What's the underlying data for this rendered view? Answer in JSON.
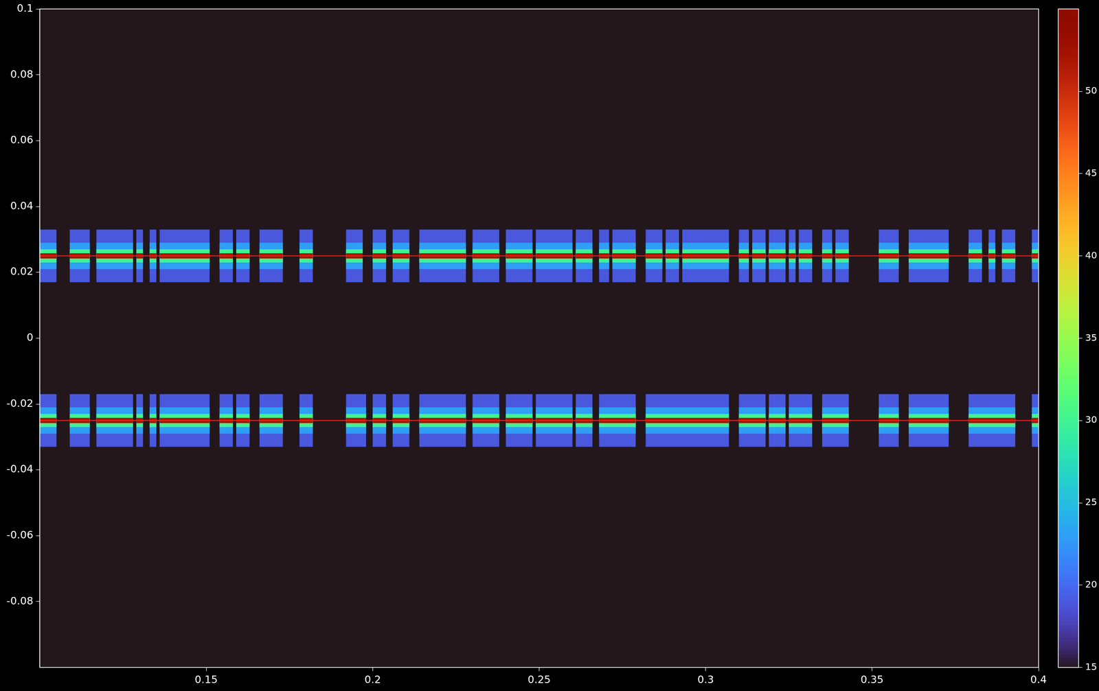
{
  "chart_data": {
    "type": "heatmap",
    "xlim": [
      0.1,
      0.4
    ],
    "xticks": [
      0.15,
      0.2,
      0.25,
      0.3,
      0.35,
      0.4
    ],
    "ylim": [
      -0.1,
      0.1
    ],
    "yticks": [
      -0.08,
      -0.06,
      -0.04,
      -0.02,
      0,
      0.02,
      0.04,
      0.06,
      0.08,
      0.1
    ],
    "grid": false,
    "background": 15,
    "colorbar": {
      "range": [
        15,
        55
      ],
      "ticks": [
        15,
        20,
        25,
        30,
        35,
        40,
        45,
        50
      ]
    },
    "profile": [
      {
        "half_width": 0.008,
        "value": 19
      },
      {
        "half_width": 0.004,
        "value": 23
      },
      {
        "half_width": 0.002,
        "value": 30
      },
      {
        "half_width": 0.0008,
        "value": 52
      }
    ],
    "bands": [
      {
        "center": 0.025,
        "bursts": [
          [
            0.1,
            0.105
          ],
          [
            0.109,
            0.115
          ],
          [
            0.117,
            0.128
          ],
          [
            0.129,
            0.131
          ],
          [
            0.133,
            0.135
          ],
          [
            0.136,
            0.149
          ],
          [
            0.149,
            0.151
          ],
          [
            0.154,
            0.158
          ],
          [
            0.159,
            0.163
          ],
          [
            0.166,
            0.173
          ],
          [
            0.178,
            0.182
          ],
          [
            0.192,
            0.197
          ],
          [
            0.2,
            0.204
          ],
          [
            0.206,
            0.211
          ],
          [
            0.214,
            0.228
          ],
          [
            0.23,
            0.238
          ],
          [
            0.24,
            0.248
          ],
          [
            0.249,
            0.26
          ],
          [
            0.261,
            0.266
          ],
          [
            0.268,
            0.271
          ],
          [
            0.272,
            0.279
          ],
          [
            0.282,
            0.287
          ],
          [
            0.288,
            0.292
          ],
          [
            0.293,
            0.307
          ],
          [
            0.31,
            0.313
          ],
          [
            0.314,
            0.318
          ],
          [
            0.319,
            0.324
          ],
          [
            0.325,
            0.327
          ],
          [
            0.328,
            0.332
          ],
          [
            0.335,
            0.338
          ],
          [
            0.339,
            0.343
          ],
          [
            0.352,
            0.358
          ],
          [
            0.361,
            0.373
          ],
          [
            0.379,
            0.383
          ],
          [
            0.385,
            0.387
          ],
          [
            0.389,
            0.393
          ],
          [
            0.398,
            0.4
          ]
        ]
      },
      {
        "center": -0.025,
        "bursts": [
          [
            0.1,
            0.105
          ],
          [
            0.109,
            0.115
          ],
          [
            0.117,
            0.128
          ],
          [
            0.129,
            0.131
          ],
          [
            0.133,
            0.135
          ],
          [
            0.136,
            0.149
          ],
          [
            0.149,
            0.151
          ],
          [
            0.154,
            0.158
          ],
          [
            0.159,
            0.163
          ],
          [
            0.166,
            0.173
          ],
          [
            0.178,
            0.182
          ],
          [
            0.192,
            0.198
          ],
          [
            0.2,
            0.204
          ],
          [
            0.206,
            0.211
          ],
          [
            0.214,
            0.228
          ],
          [
            0.23,
            0.238
          ],
          [
            0.24,
            0.248
          ],
          [
            0.249,
            0.26
          ],
          [
            0.261,
            0.266
          ],
          [
            0.268,
            0.279
          ],
          [
            0.282,
            0.307
          ],
          [
            0.31,
            0.318
          ],
          [
            0.319,
            0.324
          ],
          [
            0.325,
            0.332
          ],
          [
            0.335,
            0.343
          ],
          [
            0.352,
            0.358
          ],
          [
            0.361,
            0.373
          ],
          [
            0.379,
            0.393
          ],
          [
            0.398,
            0.4
          ]
        ]
      }
    ],
    "series": [
      {
        "type": "line",
        "color": "#e8241c",
        "x": [
          0.1,
          0.4
        ],
        "values": [
          0.025,
          0.025
        ]
      },
      {
        "type": "line",
        "color": "#e8241c",
        "x": [
          0.1,
          0.4
        ],
        "values": [
          -0.025,
          -0.025
        ]
      }
    ]
  }
}
